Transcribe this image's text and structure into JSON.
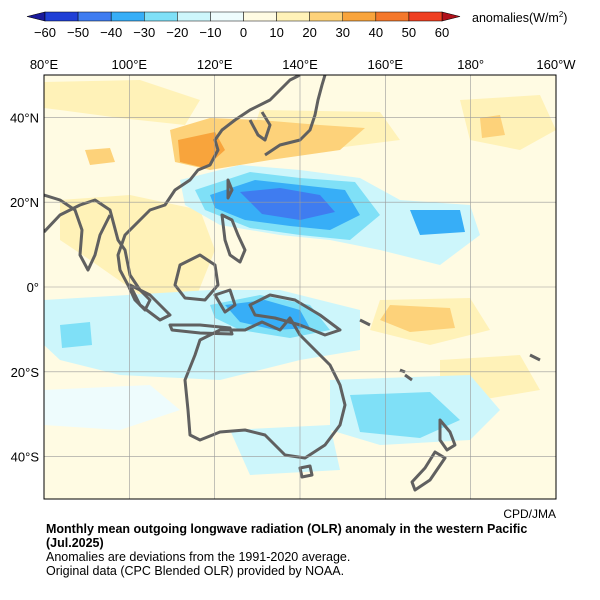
{
  "colorbar": {
    "ticks": [
      "−60",
      "−50",
      "−40",
      "−30",
      "−20",
      "−10",
      "0",
      "10",
      "20",
      "30",
      "40",
      "50",
      "60"
    ],
    "colors": [
      "#1f3fd6",
      "#3f7cf0",
      "#37aef7",
      "#7fe0f7",
      "#cdf6fb",
      "#eefcfd",
      "#fffbe3",
      "#fff2b8",
      "#fdd27a",
      "#f8a43c",
      "#f4782b",
      "#ee3f21"
    ],
    "unit_prefix": "anomalies(W/m",
    "unit_sup": "2",
    "unit_suffix": ")"
  },
  "map": {
    "lon_labels": [
      "80°E",
      "100°E",
      "120°E",
      "140°E",
      "160°E",
      "180°",
      "160°W"
    ],
    "lat_labels": [
      "40°N",
      "20°N",
      "0°",
      "20°S",
      "40°S"
    ],
    "lon_range": [
      80,
      200
    ],
    "lat_range": [
      -50,
      50
    ],
    "grid_lons": [
      100,
      120,
      140,
      160,
      180
    ],
    "grid_lats": [
      40,
      20,
      0,
      -20,
      -40
    ],
    "coastline_color": "#606060"
  },
  "credit": "CPD/JMA",
  "caption": {
    "title_line1": "Monthly mean outgoing longwave radiation (OLR) anomaly in the western Pacific",
    "title_line2": "(Jul.2025)",
    "line3": "Anomalies are deviations from the 1991-2020 average.",
    "line4": "Original data (CPC Blended OLR) provided by NOAA."
  }
}
